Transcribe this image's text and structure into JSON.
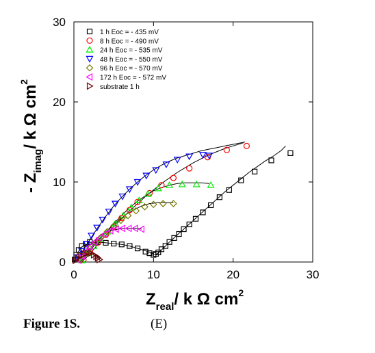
{
  "caption": {
    "figure_label": "Figure 1S.",
    "panel_label": "(E)"
  },
  "chart_data": {
    "type": "scatter",
    "xlabel_main": "Z",
    "xlabel_sub": "real",
    "xlabel_rest": "/ k Ω cm",
    "xlabel_sup": "2",
    "ylabel_pre": "- Z",
    "ylabel_sub": "imag",
    "ylabel_rest": "/ k Ω cm",
    "ylabel_sup": "2",
    "xlim": [
      0,
      30
    ],
    "ylim": [
      0,
      30
    ],
    "xticks": [
      "0",
      "10",
      "20",
      "30"
    ],
    "yticks": [
      "0",
      "10",
      "20",
      "30"
    ],
    "legend_position": "top-left",
    "series": [
      {
        "name": "1 h      Eoc = - 435 mV",
        "marker": "square",
        "color": "#000000",
        "fit_color": "#000000",
        "x": [
          0.1,
          0.3,
          0.6,
          1.0,
          1.5,
          2.0,
          3.0,
          4.0,
          5.0,
          6.0,
          7.0,
          8.0,
          9.0,
          9.5,
          10.0,
          10.3,
          10.6,
          11.0,
          11.5,
          12.0,
          12.6,
          13.2,
          13.8,
          14.5,
          15.3,
          16.2,
          17.2,
          18.3,
          19.5,
          21.0,
          22.7,
          24.8,
          27.2
        ],
        "y": [
          0.3,
          0.9,
          1.5,
          2.0,
          2.3,
          2.5,
          2.5,
          2.4,
          2.3,
          2.2,
          2.0,
          1.7,
          1.3,
          1.1,
          0.9,
          1.0,
          1.2,
          1.6,
          2.0,
          2.5,
          3.0,
          3.5,
          4.1,
          4.7,
          5.4,
          6.2,
          7.1,
          8.1,
          9.0,
          10.2,
          11.3,
          12.7,
          13.6
        ],
        "fit_x": [
          0,
          0.5,
          1.0,
          2.0,
          3.0,
          4.0,
          5.0,
          6.0,
          7.0,
          8.0,
          9.0,
          9.5,
          10.0,
          10.3,
          10.6,
          11.0,
          11.5,
          12.0,
          13.0,
          14.0,
          15.0,
          16.0,
          17.0,
          18.0,
          19.0,
          20.0,
          21.0,
          22.0,
          23.0,
          24.0,
          25.0,
          26.0,
          26.6
        ],
        "fit_y": [
          0,
          1.2,
          1.9,
          2.4,
          2.5,
          2.4,
          2.3,
          2.2,
          2.0,
          1.7,
          1.4,
          1.2,
          1.0,
          0.95,
          1.1,
          1.5,
          2.0,
          2.5,
          3.4,
          4.3,
          5.2,
          6.1,
          7.0,
          7.9,
          8.8,
          9.6,
          10.4,
          11.2,
          11.9,
          12.6,
          13.2,
          13.9,
          14.5
        ]
      },
      {
        "name": "8 h      Eoc = - 490 mV",
        "marker": "circle",
        "color": "#ff0000",
        "fit_color": "#000000",
        "x": [
          1.2,
          2.0,
          3.0,
          4.0,
          5.0,
          6.0,
          7.0,
          8.0,
          9.5,
          11.0,
          12.5,
          14.5,
          16.8,
          19.2,
          21.7
        ],
        "y": [
          0.3,
          1.3,
          2.4,
          3.4,
          4.4,
          5.5,
          6.5,
          7.5,
          8.6,
          9.6,
          10.5,
          11.7,
          13.1,
          14.0,
          14.5
        ],
        "fit_x": [
          1.0,
          2.0,
          3.0,
          4.0,
          5.0,
          6.0,
          7.0,
          8.0,
          9.0,
          10.0,
          11.0,
          12.0,
          13.0,
          14.0,
          15.0,
          16.0,
          17.0,
          18.0,
          19.0,
          20.0,
          21.0,
          21.3
        ],
        "fit_y": [
          0,
          1.0,
          2.2,
          3.3,
          4.4,
          5.4,
          6.4,
          7.3,
          8.2,
          9.0,
          9.8,
          10.5,
          11.2,
          11.8,
          12.4,
          12.9,
          13.4,
          13.8,
          14.2,
          14.5,
          14.8,
          14.9
        ]
      },
      {
        "name": "24 h    Eoc = - 535 mV",
        "marker": "triangle-up",
        "color": "#00ee00",
        "fit_color": "#000000",
        "x": [
          1.0,
          1.7,
          2.5,
          3.3,
          4.2,
          5.2,
          6.2,
          7.2,
          8.2,
          9.3,
          10.6,
          12.0,
          13.6,
          15.4,
          17.2
        ],
        "y": [
          0.2,
          1.1,
          2.0,
          2.9,
          3.8,
          4.8,
          5.8,
          6.8,
          7.7,
          8.5,
          9.2,
          9.6,
          9.7,
          9.7,
          9.6
        ],
        "fit_x": [
          0.8,
          2.0,
          3.0,
          4.0,
          5.0,
          6.0,
          7.0,
          8.0,
          9.0,
          10.0,
          11.0,
          12.0,
          13.0,
          14.0,
          15.0,
          16.0,
          17.0
        ],
        "fit_y": [
          0,
          1.4,
          2.6,
          3.7,
          4.8,
          5.8,
          6.8,
          7.6,
          8.3,
          8.9,
          9.3,
          9.6,
          9.8,
          9.9,
          9.9,
          9.9,
          9.8
        ]
      },
      {
        "name": "48 h    Eoc = - 550 mV",
        "marker": "triangle-down",
        "color": "#0000ff",
        "fit_color": "#000000",
        "x": [
          0.5,
          1.0,
          1.6,
          2.2,
          2.9,
          3.6,
          4.4,
          5.2,
          6.1,
          7.0,
          8.0,
          9.1,
          10.3,
          11.6,
          13.0,
          14.5,
          16.2,
          17.0
        ],
        "y": [
          0.6,
          1.4,
          2.3,
          3.3,
          4.3,
          5.3,
          6.3,
          7.3,
          8.2,
          9.1,
          10.0,
          10.8,
          11.5,
          12.2,
          12.8,
          13.2,
          13.4,
          13.3
        ],
        "fit_x": [
          0.3,
          1.0,
          2.0,
          3.0,
          4.0,
          5.0,
          6.0,
          7.0,
          8.0,
          9.0,
          10.0,
          11.0,
          12.0,
          13.0,
          14.0,
          15.0,
          16.0,
          17.0,
          18.0,
          19.0,
          20.0,
          21.0,
          21.5
        ],
        "fit_y": [
          0,
          1.2,
          2.8,
          4.3,
          5.7,
          7.0,
          8.1,
          9.1,
          10.0,
          10.8,
          11.5,
          12.1,
          12.6,
          13.0,
          13.3,
          13.6,
          13.9,
          14.1,
          14.3,
          14.5,
          14.7,
          14.9,
          15.0
        ]
      },
      {
        "name": "96 h    Eoc = - 570 mV",
        "marker": "diamond",
        "color": "#7a7a00",
        "fit_color": "#000000",
        "x": [
          0.8,
          1.4,
          2.0,
          2.7,
          3.4,
          4.2,
          5.0,
          5.9,
          6.8,
          7.8,
          8.9,
          10.0,
          11.2,
          12.5
        ],
        "y": [
          0.3,
          1.0,
          1.7,
          2.4,
          3.1,
          3.8,
          4.5,
          5.2,
          5.8,
          6.4,
          6.9,
          7.2,
          7.3,
          7.3
        ],
        "fit_x": [
          0.6,
          1.5,
          2.5,
          3.5,
          4.5,
          5.5,
          6.5,
          7.5,
          8.5,
          9.5,
          10.5,
          11.5,
          12.5
        ],
        "fit_y": [
          0,
          1.1,
          2.2,
          3.2,
          4.2,
          5.1,
          5.9,
          6.5,
          7.0,
          7.3,
          7.4,
          7.4,
          7.4
        ]
      },
      {
        "name": "172 h Eoc = - 572 mV",
        "marker": "triangle-left",
        "color": "#ff00ff",
        "fit_color": "#000000",
        "x": [
          0.6,
          1.0,
          1.5,
          2.0,
          2.6,
          3.2,
          3.9,
          4.6,
          5.3,
          6.1,
          6.9,
          7.7,
          8.5
        ],
        "y": [
          0.2,
          0.7,
          1.3,
          1.9,
          2.5,
          3.0,
          3.5,
          3.9,
          4.1,
          4.2,
          4.2,
          4.2,
          4.1
        ],
        "fit_x": [
          0.4,
          1.0,
          2.0,
          3.0,
          4.0,
          5.0,
          6.0,
          7.0,
          8.0,
          8.5
        ],
        "fit_y": [
          0,
          0.8,
          2.1,
          3.1,
          3.7,
          4.0,
          4.2,
          4.2,
          4.2,
          4.1
        ]
      },
      {
        "name": "substrate 1 h",
        "marker": "triangle-right",
        "color": "#6b0000",
        "fit_color": "#000000",
        "x": [
          0.2,
          0.5,
          0.9,
          1.3,
          1.7,
          2.1,
          2.5,
          2.8,
          3.0,
          3.2
        ],
        "y": [
          0.2,
          0.5,
          0.8,
          1.0,
          1.1,
          1.1,
          0.9,
          0.7,
          0.5,
          0.3
        ],
        "fit_x": [
          0,
          0.5,
          1.0,
          1.5,
          2.0,
          2.5,
          3.0,
          3.3
        ],
        "fit_y": [
          0,
          0.5,
          0.9,
          1.1,
          1.1,
          0.9,
          0.5,
          0.2
        ]
      }
    ]
  }
}
